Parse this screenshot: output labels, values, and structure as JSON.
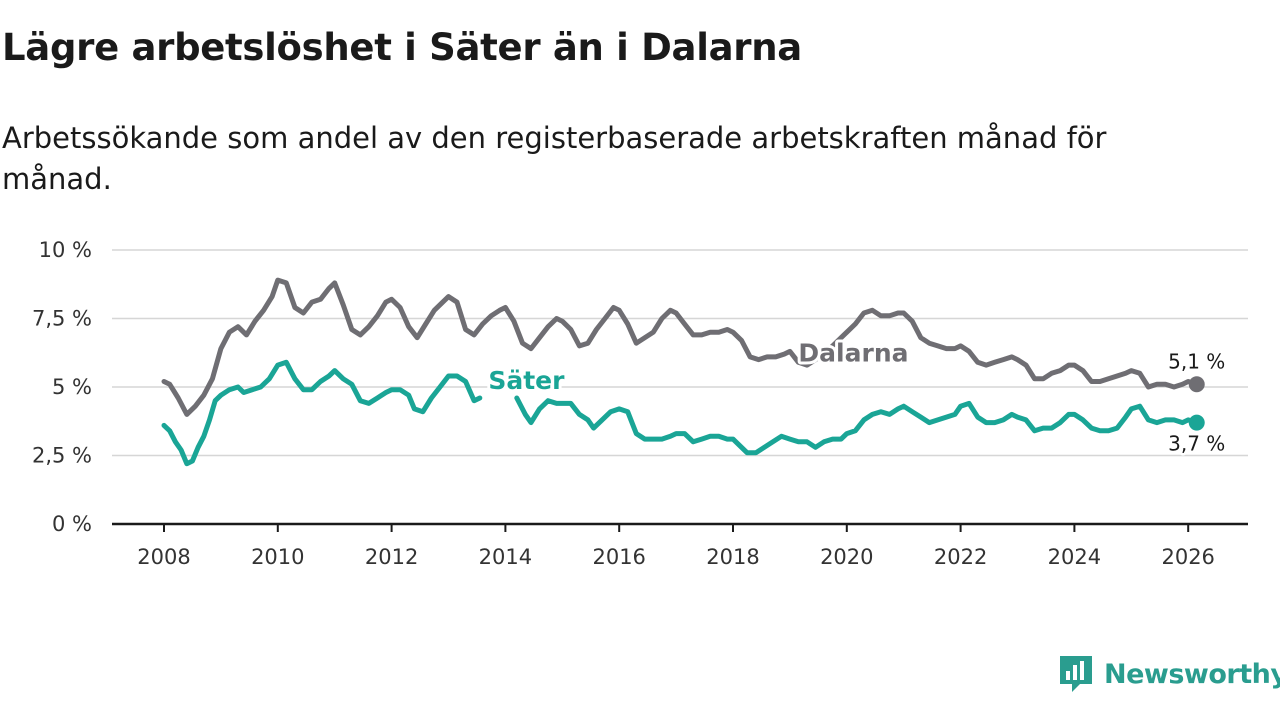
{
  "title": "Lägre arbetslöshet i Säter än i Dalarna",
  "subtitle": "Arbetssökande som andel av den registerbaserade arbetskraften månad för månad.",
  "brand": {
    "name": "Newsworthy",
    "icon": "newsworthy-logo-icon",
    "color": "#2a9d8f"
  },
  "chart_data": {
    "type": "line",
    "title": "Lägre arbetslöshet i Säter än i Dalarna",
    "xlabel": "",
    "ylabel": "",
    "xlim": [
      2007.7,
      2027.0
    ],
    "ylim": [
      0,
      10
    ],
    "grid": true,
    "y_ticks": [
      {
        "value": 0,
        "label": "0 %"
      },
      {
        "value": 2.5,
        "label": "2,5 %"
      },
      {
        "value": 5,
        "label": "5 %"
      },
      {
        "value": 7.5,
        "label": "7,5 %"
      },
      {
        "value": 10,
        "label": "10 %"
      }
    ],
    "x_ticks": [
      {
        "value": 2008,
        "label": "2008"
      },
      {
        "value": 2010,
        "label": "2010"
      },
      {
        "value": 2012,
        "label": "2012"
      },
      {
        "value": 2014,
        "label": "2014"
      },
      {
        "value": 2016,
        "label": "2016"
      },
      {
        "value": 2018,
        "label": "2018"
      },
      {
        "value": 2020,
        "label": "2020"
      },
      {
        "value": 2022,
        "label": "2022"
      },
      {
        "value": 2024,
        "label": "2024"
      },
      {
        "value": 2026,
        "label": "2026"
      }
    ],
    "series": [
      {
        "name": "Dalarna",
        "label": "Dalarna",
        "color": "#6f6e73",
        "end_label": "5,1 %",
        "points": [
          [
            2008.0,
            5.2
          ],
          [
            2008.1,
            5.1
          ],
          [
            2008.25,
            4.6
          ],
          [
            2008.4,
            4.0
          ],
          [
            2008.55,
            4.3
          ],
          [
            2008.7,
            4.7
          ],
          [
            2008.85,
            5.3
          ],
          [
            2009.0,
            6.4
          ],
          [
            2009.15,
            7.0
          ],
          [
            2009.3,
            7.2
          ],
          [
            2009.45,
            6.9
          ],
          [
            2009.6,
            7.4
          ],
          [
            2009.75,
            7.8
          ],
          [
            2009.9,
            8.3
          ],
          [
            2010.0,
            8.9
          ],
          [
            2010.15,
            8.8
          ],
          [
            2010.3,
            7.9
          ],
          [
            2010.45,
            7.7
          ],
          [
            2010.6,
            8.1
          ],
          [
            2010.75,
            8.2
          ],
          [
            2010.9,
            8.6
          ],
          [
            2011.0,
            8.8
          ],
          [
            2011.15,
            8.0
          ],
          [
            2011.3,
            7.1
          ],
          [
            2011.45,
            6.9
          ],
          [
            2011.6,
            7.2
          ],
          [
            2011.75,
            7.6
          ],
          [
            2011.9,
            8.1
          ],
          [
            2012.0,
            8.2
          ],
          [
            2012.15,
            7.9
          ],
          [
            2012.3,
            7.2
          ],
          [
            2012.45,
            6.8
          ],
          [
            2012.6,
            7.3
          ],
          [
            2012.75,
            7.8
          ],
          [
            2012.9,
            8.1
          ],
          [
            2013.0,
            8.3
          ],
          [
            2013.15,
            8.1
          ],
          [
            2013.3,
            7.1
          ],
          [
            2013.45,
            6.9
          ],
          [
            2013.6,
            7.3
          ],
          [
            2013.75,
            7.6
          ],
          [
            2013.9,
            7.8
          ],
          [
            2014.0,
            7.9
          ],
          [
            2014.15,
            7.4
          ],
          [
            2014.3,
            6.6
          ],
          [
            2014.45,
            6.4
          ],
          [
            2014.6,
            6.8
          ],
          [
            2014.75,
            7.2
          ],
          [
            2014.9,
            7.5
          ],
          [
            2015.0,
            7.4
          ],
          [
            2015.15,
            7.1
          ],
          [
            2015.3,
            6.5
          ],
          [
            2015.45,
            6.6
          ],
          [
            2015.6,
            7.1
          ],
          [
            2015.75,
            7.5
          ],
          [
            2015.9,
            7.9
          ],
          [
            2016.0,
            7.8
          ],
          [
            2016.15,
            7.3
          ],
          [
            2016.3,
            6.6
          ],
          [
            2016.45,
            6.8
          ],
          [
            2016.6,
            7.0
          ],
          [
            2016.75,
            7.5
          ],
          [
            2016.9,
            7.8
          ],
          [
            2017.0,
            7.7
          ],
          [
            2017.15,
            7.3
          ],
          [
            2017.3,
            6.9
          ],
          [
            2017.45,
            6.9
          ],
          [
            2017.6,
            7.0
          ],
          [
            2017.75,
            7.0
          ],
          [
            2017.9,
            7.1
          ],
          [
            2018.0,
            7.0
          ],
          [
            2018.15,
            6.7
          ],
          [
            2018.3,
            6.1
          ],
          [
            2018.45,
            6.0
          ],
          [
            2018.6,
            6.1
          ],
          [
            2018.75,
            6.1
          ],
          [
            2018.9,
            6.2
          ],
          [
            2019.0,
            6.3
          ],
          [
            2019.15,
            5.9
          ],
          [
            2019.3,
            5.8
          ],
          [
            2019.45,
            6.0
          ],
          [
            2019.6,
            6.2
          ],
          [
            2019.75,
            6.5
          ],
          [
            2019.9,
            6.8
          ],
          [
            2020.0,
            7.0
          ],
          [
            2020.15,
            7.3
          ],
          [
            2020.3,
            7.7
          ],
          [
            2020.45,
            7.8
          ],
          [
            2020.6,
            7.6
          ],
          [
            2020.75,
            7.6
          ],
          [
            2020.9,
            7.7
          ],
          [
            2021.0,
            7.7
          ],
          [
            2021.15,
            7.4
          ],
          [
            2021.3,
            6.8
          ],
          [
            2021.45,
            6.6
          ],
          [
            2021.6,
            6.5
          ],
          [
            2021.75,
            6.4
          ],
          [
            2021.9,
            6.4
          ],
          [
            2022.0,
            6.5
          ],
          [
            2022.15,
            6.3
          ],
          [
            2022.3,
            5.9
          ],
          [
            2022.45,
            5.8
          ],
          [
            2022.6,
            5.9
          ],
          [
            2022.75,
            6.0
          ],
          [
            2022.9,
            6.1
          ],
          [
            2023.0,
            6.0
          ],
          [
            2023.15,
            5.8
          ],
          [
            2023.3,
            5.3
          ],
          [
            2023.45,
            5.3
          ],
          [
            2023.6,
            5.5
          ],
          [
            2023.75,
            5.6
          ],
          [
            2023.9,
            5.8
          ],
          [
            2024.0,
            5.8
          ],
          [
            2024.15,
            5.6
          ],
          [
            2024.3,
            5.2
          ],
          [
            2024.45,
            5.2
          ],
          [
            2024.6,
            5.3
          ],
          [
            2024.75,
            5.4
          ],
          [
            2024.9,
            5.5
          ],
          [
            2025.0,
            5.6
          ],
          [
            2025.15,
            5.5
          ],
          [
            2025.3,
            5.0
          ],
          [
            2025.45,
            5.1
          ],
          [
            2025.6,
            5.1
          ],
          [
            2025.75,
            5.0
          ],
          [
            2025.9,
            5.1
          ],
          [
            2026.0,
            5.2
          ],
          [
            2026.15,
            5.1
          ]
        ]
      },
      {
        "name": "Säter",
        "label": "Säter",
        "color": "#1aa596",
        "end_label": "3,7 %",
        "points": [
          [
            2008.0,
            3.6
          ],
          [
            2008.1,
            3.4
          ],
          [
            2008.2,
            3.0
          ],
          [
            2008.3,
            2.7
          ],
          [
            2008.4,
            2.2
          ],
          [
            2008.5,
            2.3
          ],
          [
            2008.6,
            2.8
          ],
          [
            2008.7,
            3.2
          ],
          [
            2008.8,
            3.8
          ],
          [
            2008.9,
            4.5
          ],
          [
            2009.0,
            4.7
          ],
          [
            2009.15,
            4.9
          ],
          [
            2009.3,
            5.0
          ],
          [
            2009.4,
            4.8
          ],
          [
            2009.55,
            4.9
          ],
          [
            2009.7,
            5.0
          ],
          [
            2009.85,
            5.3
          ],
          [
            2010.0,
            5.8
          ],
          [
            2010.15,
            5.9
          ],
          [
            2010.3,
            5.3
          ],
          [
            2010.45,
            4.9
          ],
          [
            2010.6,
            4.9
          ],
          [
            2010.75,
            5.2
          ],
          [
            2010.9,
            5.4
          ],
          [
            2011.0,
            5.6
          ],
          [
            2011.15,
            5.3
          ],
          [
            2011.3,
            5.1
          ],
          [
            2011.45,
            4.5
          ],
          [
            2011.6,
            4.4
          ],
          [
            2011.75,
            4.6
          ],
          [
            2011.9,
            4.8
          ],
          [
            2012.0,
            4.9
          ],
          [
            2012.15,
            4.9
          ],
          [
            2012.3,
            4.7
          ],
          [
            2012.4,
            4.2
          ],
          [
            2012.55,
            4.1
          ],
          [
            2012.7,
            4.6
          ],
          [
            2012.85,
            5.0
          ],
          [
            2013.0,
            5.4
          ],
          [
            2013.15,
            5.4
          ],
          [
            2013.3,
            5.2
          ],
          [
            2013.45,
            4.5
          ],
          [
            2013.55,
            4.6
          ],
          [
            2014.2,
            4.6
          ],
          [
            2014.35,
            4.0
          ],
          [
            2014.45,
            3.7
          ],
          [
            2014.6,
            4.2
          ],
          [
            2014.75,
            4.5
          ],
          [
            2014.9,
            4.4
          ],
          [
            2015.0,
            4.4
          ],
          [
            2015.15,
            4.4
          ],
          [
            2015.3,
            4.0
          ],
          [
            2015.45,
            3.8
          ],
          [
            2015.55,
            3.5
          ],
          [
            2015.7,
            3.8
          ],
          [
            2015.85,
            4.1
          ],
          [
            2016.0,
            4.2
          ],
          [
            2016.15,
            4.1
          ],
          [
            2016.3,
            3.3
          ],
          [
            2016.45,
            3.1
          ],
          [
            2016.6,
            3.1
          ],
          [
            2016.75,
            3.1
          ],
          [
            2016.9,
            3.2
          ],
          [
            2017.0,
            3.3
          ],
          [
            2017.15,
            3.3
          ],
          [
            2017.3,
            3.0
          ],
          [
            2017.45,
            3.1
          ],
          [
            2017.6,
            3.2
          ],
          [
            2017.75,
            3.2
          ],
          [
            2017.9,
            3.1
          ],
          [
            2018.0,
            3.1
          ],
          [
            2018.15,
            2.8
          ],
          [
            2018.25,
            2.6
          ],
          [
            2018.4,
            2.6
          ],
          [
            2018.55,
            2.8
          ],
          [
            2018.7,
            3.0
          ],
          [
            2018.85,
            3.2
          ],
          [
            2019.0,
            3.1
          ],
          [
            2019.15,
            3.0
          ],
          [
            2019.3,
            3.0
          ],
          [
            2019.45,
            2.8
          ],
          [
            2019.6,
            3.0
          ],
          [
            2019.75,
            3.1
          ],
          [
            2019.9,
            3.1
          ],
          [
            2020.0,
            3.3
          ],
          [
            2020.15,
            3.4
          ],
          [
            2020.3,
            3.8
          ],
          [
            2020.45,
            4.0
          ],
          [
            2020.6,
            4.1
          ],
          [
            2020.75,
            4.0
          ],
          [
            2020.9,
            4.2
          ],
          [
            2021.0,
            4.3
          ],
          [
            2021.15,
            4.1
          ],
          [
            2021.3,
            3.9
          ],
          [
            2021.45,
            3.7
          ],
          [
            2021.6,
            3.8
          ],
          [
            2021.75,
            3.9
          ],
          [
            2021.9,
            4.0
          ],
          [
            2022.0,
            4.3
          ],
          [
            2022.15,
            4.4
          ],
          [
            2022.3,
            3.9
          ],
          [
            2022.45,
            3.7
          ],
          [
            2022.6,
            3.7
          ],
          [
            2022.75,
            3.8
          ],
          [
            2022.9,
            4.0
          ],
          [
            2023.0,
            3.9
          ],
          [
            2023.15,
            3.8
          ],
          [
            2023.3,
            3.4
          ],
          [
            2023.45,
            3.5
          ],
          [
            2023.6,
            3.5
          ],
          [
            2023.75,
            3.7
          ],
          [
            2023.9,
            4.0
          ],
          [
            2024.0,
            4.0
          ],
          [
            2024.15,
            3.8
          ],
          [
            2024.3,
            3.5
          ],
          [
            2024.45,
            3.4
          ],
          [
            2024.6,
            3.4
          ],
          [
            2024.75,
            3.5
          ],
          [
            2024.9,
            3.9
          ],
          [
            2025.0,
            4.2
          ],
          [
            2025.15,
            4.3
          ],
          [
            2025.3,
            3.8
          ],
          [
            2025.45,
            3.7
          ],
          [
            2025.6,
            3.8
          ],
          [
            2025.75,
            3.8
          ],
          [
            2025.9,
            3.7
          ],
          [
            2026.0,
            3.8
          ],
          [
            2026.15,
            3.7
          ]
        ]
      }
    ]
  }
}
